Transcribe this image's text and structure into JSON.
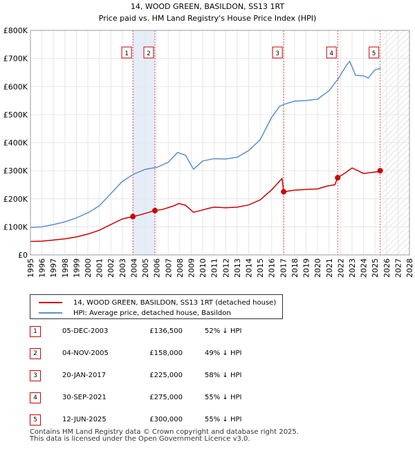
{
  "chart_data": {
    "type": "line",
    "title": "14, WOOD GREEN, BASILDON, SS13 1RT",
    "subtitle": "Price paid vs. HM Land Registry's House Price Index (HPI)",
    "xlim": [
      1995,
      2028
    ],
    "ylim": [
      0,
      800000
    ],
    "x_ticks": [
      1995,
      1996,
      1997,
      1998,
      1999,
      2000,
      2001,
      2002,
      2003,
      2004,
      2005,
      2006,
      2007,
      2008,
      2009,
      2010,
      2011,
      2012,
      2013,
      2014,
      2015,
      2016,
      2017,
      2018,
      2019,
      2020,
      2021,
      2022,
      2023,
      2024,
      2025,
      2026,
      2027,
      2028
    ],
    "y_ticks": [
      {
        "value": 0,
        "label": "£0"
      },
      {
        "value": 100000,
        "label": "£100K"
      },
      {
        "value": 200000,
        "label": "£200K"
      },
      {
        "value": 300000,
        "label": "£300K"
      },
      {
        "value": 400000,
        "label": "£400K"
      },
      {
        "value": 500000,
        "label": "£500K"
      },
      {
        "value": 600000,
        "label": "£600K"
      },
      {
        "value": 700000,
        "label": "£700K"
      },
      {
        "value": 800000,
        "label": "£800K"
      }
    ],
    "grid": true,
    "shaded_periods": [
      [
        2003.92,
        2005.84
      ]
    ],
    "future_hatch_from": 2025.6,
    "series": [
      {
        "name": "14, WOOD GREEN, BASILDON, SS13 1RT (detached house)",
        "color": "#cc0000",
        "points": [
          [
            1995,
            48000
          ],
          [
            1996,
            49000
          ],
          [
            1997,
            53000
          ],
          [
            1998,
            57000
          ],
          [
            1999,
            64000
          ],
          [
            2000,
            74000
          ],
          [
            2001,
            88000
          ],
          [
            2002,
            108000
          ],
          [
            2003,
            128000
          ],
          [
            2003.92,
            136500
          ],
          [
            2004.5,
            142000
          ],
          [
            2005.84,
            158000
          ],
          [
            2006.5,
            162000
          ],
          [
            2007.5,
            175000
          ],
          [
            2007.9,
            183000
          ],
          [
            2008.5,
            177000
          ],
          [
            2009.2,
            152000
          ],
          [
            2009.8,
            158000
          ],
          [
            2010.5,
            166000
          ],
          [
            2011,
            170000
          ],
          [
            2012,
            168000
          ],
          [
            2013,
            170000
          ],
          [
            2014,
            178000
          ],
          [
            2015,
            196000
          ],
          [
            2016,
            232000
          ],
          [
            2016.9,
            272000
          ],
          [
            2017.05,
            225000
          ],
          [
            2018,
            231000
          ],
          [
            2019,
            233000
          ],
          [
            2020,
            235000
          ],
          [
            2020.8,
            245000
          ],
          [
            2021.5,
            250000
          ],
          [
            2021.75,
            275000
          ],
          [
            2022.5,
            295000
          ],
          [
            2023,
            310000
          ],
          [
            2023.5,
            300000
          ],
          [
            2024,
            290000
          ],
          [
            2024.5,
            293000
          ],
          [
            2025.2,
            296000
          ],
          [
            2025.45,
            300000
          ]
        ]
      },
      {
        "name": "HPI: Average price, detached house, Basildon",
        "color": "#5b8fd1",
        "points": [
          [
            1995,
            98000
          ],
          [
            1996,
            100000
          ],
          [
            1997,
            108000
          ],
          [
            1998,
            118000
          ],
          [
            1999,
            132000
          ],
          [
            2000,
            150000
          ],
          [
            2001,
            175000
          ],
          [
            2002,
            218000
          ],
          [
            2003,
            262000
          ],
          [
            2004,
            288000
          ],
          [
            2005,
            305000
          ],
          [
            2006,
            312000
          ],
          [
            2007,
            330000
          ],
          [
            2007.8,
            365000
          ],
          [
            2008.5,
            355000
          ],
          [
            2009.2,
            305000
          ],
          [
            2010,
            335000
          ],
          [
            2011,
            343000
          ],
          [
            2012,
            342000
          ],
          [
            2013,
            348000
          ],
          [
            2014,
            372000
          ],
          [
            2015,
            410000
          ],
          [
            2016,
            490000
          ],
          [
            2016.7,
            530000
          ],
          [
            2017.2,
            538000
          ],
          [
            2018,
            548000
          ],
          [
            2019,
            550000
          ],
          [
            2020,
            555000
          ],
          [
            2021,
            585000
          ],
          [
            2021.8,
            628000
          ],
          [
            2022.5,
            675000
          ],
          [
            2022.8,
            690000
          ],
          [
            2023.3,
            640000
          ],
          [
            2024,
            638000
          ],
          [
            2024.4,
            630000
          ],
          [
            2025,
            660000
          ],
          [
            2025.5,
            665000
          ]
        ]
      }
    ],
    "sales": [
      {
        "n": "1",
        "x": 2003.92,
        "price": 136500
      },
      {
        "n": "2",
        "x": 2005.84,
        "price": 158000
      },
      {
        "n": "3",
        "x": 2017.05,
        "price": 225000
      },
      {
        "n": "4",
        "x": 2021.75,
        "price": 275000
      },
      {
        "n": "5",
        "x": 2025.45,
        "price": 300000
      }
    ]
  },
  "legend": {
    "property": "14, WOOD GREEN, BASILDON, SS13 1RT (detached house)",
    "hpi": "HPI: Average price, detached house, Basildon"
  },
  "sales_table": [
    {
      "n": "1",
      "date": "05-DEC-2003",
      "price": "£136,500",
      "hpi": "52% ↓ HPI"
    },
    {
      "n": "2",
      "date": "04-NOV-2005",
      "price": "£158,000",
      "hpi": "49% ↓ HPI"
    },
    {
      "n": "3",
      "date": "20-JAN-2017",
      "price": "£225,000",
      "hpi": "58% ↓ HPI"
    },
    {
      "n": "4",
      "date": "30-SEP-2021",
      "price": "£275,000",
      "hpi": "55% ↓ HPI"
    },
    {
      "n": "5",
      "date": "12-JUN-2025",
      "price": "£300,000",
      "hpi": "55% ↓ HPI"
    }
  ],
  "footer": {
    "line1": "Contains HM Land Registry data © Crown copyright and database right 2025.",
    "line2": "This data is licensed under the Open Government Licence v3.0."
  }
}
